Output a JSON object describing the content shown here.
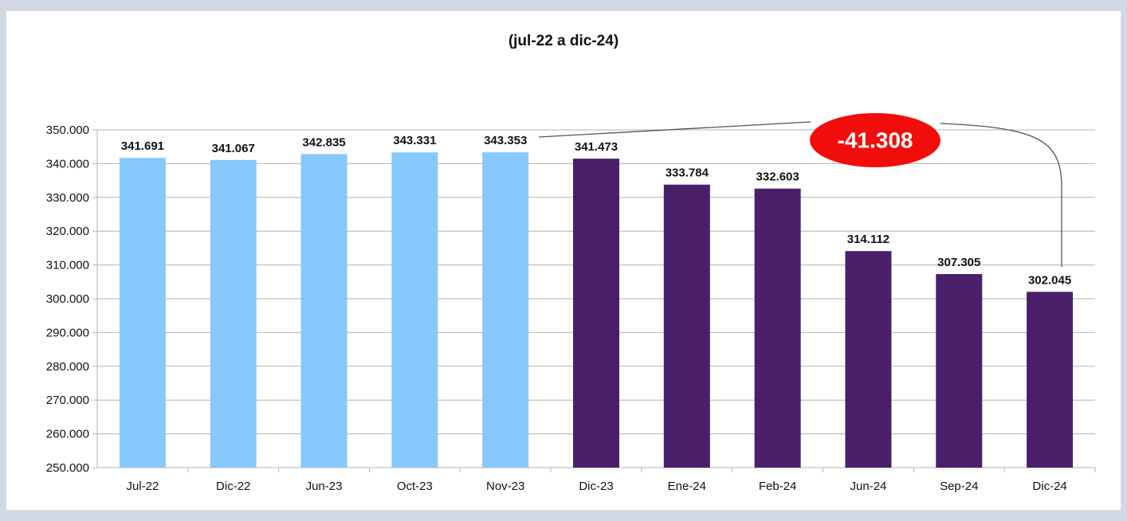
{
  "chart_data": {
    "type": "bar",
    "subtitle": "(jul-22 a dic-24)",
    "categories": [
      "Jul-22",
      "Dic-22",
      "Jun-23",
      "Oct-23",
      "Nov-23",
      "Dic-23",
      "Ene-24",
      "Feb-24",
      "Jun-24",
      "Sep-24",
      "Dic-24"
    ],
    "values": [
      341691,
      341067,
      342835,
      343331,
      343353,
      341473,
      333784,
      332603,
      314112,
      307305,
      302045
    ],
    "value_labels": [
      "341.691",
      "341.067",
      "342.835",
      "343.331",
      "343.353",
      "341.473",
      "333.784",
      "332.603",
      "314.112",
      "307.305",
      "302.045"
    ],
    "colors": [
      "#86c9fb",
      "#86c9fb",
      "#86c9fb",
      "#86c9fb",
      "#86c9fb",
      "#4a1f6a",
      "#4a1f6a",
      "#4a1f6a",
      "#4a1f6a",
      "#4a1f6a",
      "#4a1f6a"
    ],
    "ylim": [
      250000,
      350000
    ],
    "yticks": [
      {
        "value": 250000,
        "label": "250.000"
      },
      {
        "value": 260000,
        "label": "260.000"
      },
      {
        "value": 270000,
        "label": "270.000"
      },
      {
        "value": 280000,
        "label": "280.000"
      },
      {
        "value": 290000,
        "label": "290.000"
      },
      {
        "value": 300000,
        "label": "300.000"
      },
      {
        "value": 310000,
        "label": "310.000"
      },
      {
        "value": 320000,
        "label": "320.000"
      },
      {
        "value": 330000,
        "label": "330.000"
      },
      {
        "value": 340000,
        "label": "340.000"
      },
      {
        "value": 350000,
        "label": "350.000"
      }
    ],
    "grid": true,
    "annotation": "-41.308"
  }
}
